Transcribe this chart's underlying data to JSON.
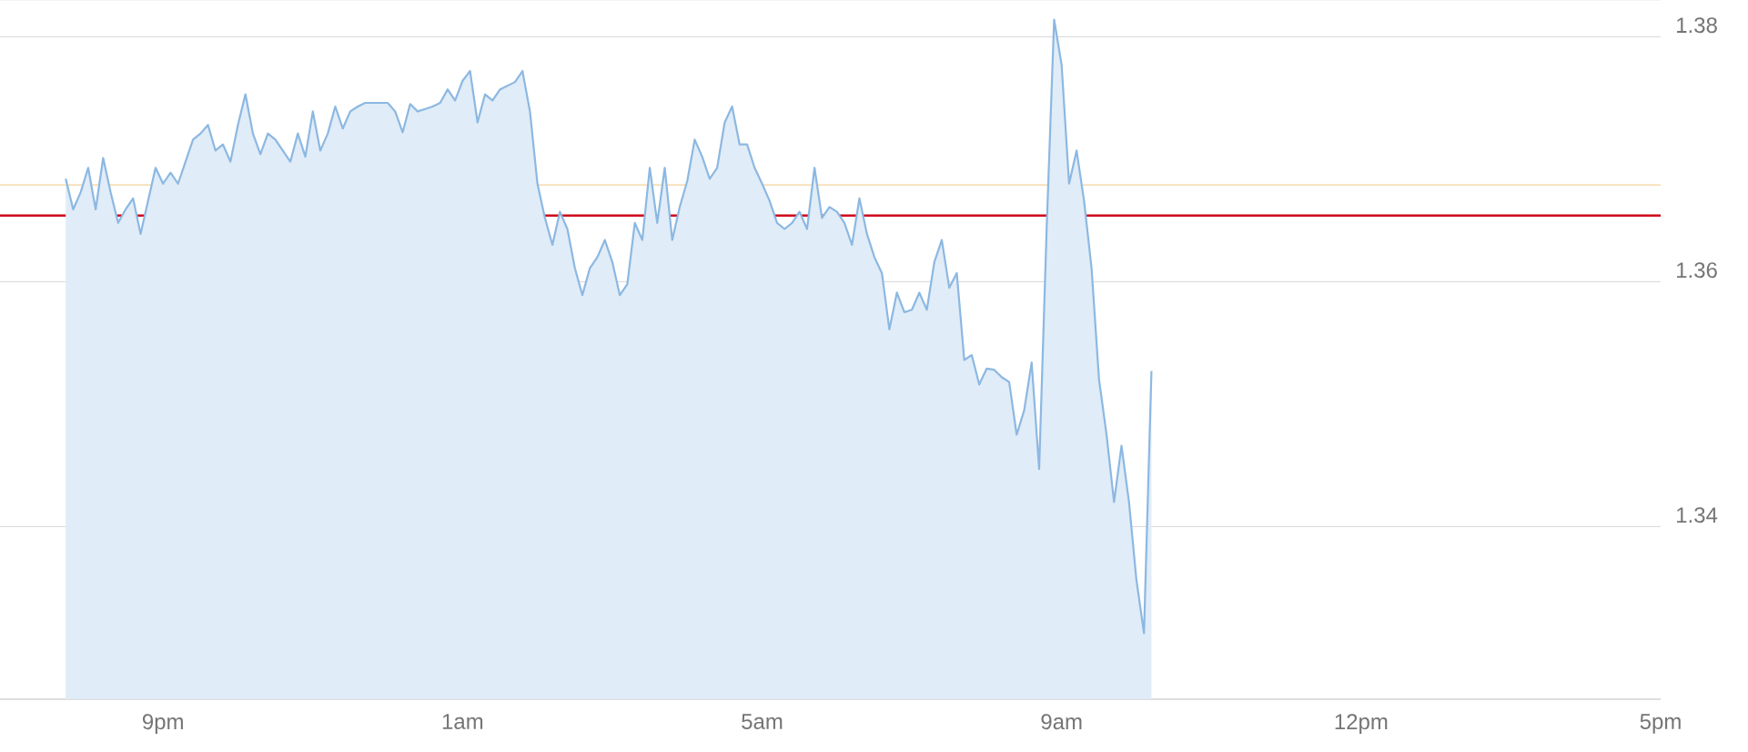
{
  "chart_data": {
    "type": "area",
    "categories": [
      null,
      null,
      null,
      null,
      null,
      null,
      null,
      null,
      null,
      null,
      null,
      null,
      null,
      "9pm",
      null,
      null,
      null,
      null,
      null,
      null,
      null,
      null,
      null,
      null,
      null,
      null,
      null,
      null,
      null,
      null,
      null,
      null,
      null,
      null,
      null,
      null,
      null,
      null,
      null,
      null,
      null,
      null,
      null,
      null,
      null,
      null,
      null,
      null,
      null,
      null,
      null,
      null,
      null,
      "1am",
      null,
      null,
      null,
      null,
      null,
      null,
      null,
      null,
      null,
      null,
      null,
      null,
      null,
      null,
      null,
      null,
      null,
      null,
      null,
      null,
      null,
      null,
      null,
      null,
      null,
      null,
      null,
      null,
      null,
      null,
      null,
      null,
      null,
      null,
      null,
      null,
      null,
      null,
      null,
      "5am",
      null,
      null,
      null,
      null,
      null,
      null,
      null,
      null,
      null,
      null,
      null,
      null,
      null,
      null,
      null,
      null,
      null,
      null,
      null,
      null,
      null,
      null,
      null,
      null,
      null,
      null,
      null,
      null,
      null,
      null,
      null,
      null,
      null,
      null,
      null,
      null,
      null,
      null,
      null,
      "9am",
      null,
      null,
      null,
      null,
      null,
      null,
      null,
      null,
      null,
      null,
      null,
      null,
      null,
      null,
      null,
      null,
      null,
      null,
      null,
      null,
      null,
      null,
      null,
      null,
      null,
      null,
      null,
      null,
      null,
      null,
      null,
      null,
      null,
      null,
      null,
      null,
      null,
      null,
      null,
      "12pm",
      null,
      null,
      null,
      null,
      null,
      null,
      null,
      null,
      null,
      null,
      null,
      null,
      null,
      null,
      null,
      null,
      null,
      null,
      null,
      null,
      null,
      null,
      null,
      null,
      null,
      null,
      null,
      null,
      null,
      null,
      null,
      null,
      null,
      null,
      null,
      null,
      null,
      null,
      null,
      "5pm"
    ],
    "series": [
      {
        "color": "#8cb8e2",
        "values": [
          1.3684,
          1.3659,
          1.3673,
          1.3693,
          1.3659,
          1.3701,
          1.3673,
          1.3648,
          1.3659,
          1.3668,
          1.3639,
          1.3666,
          1.3693,
          1.368,
          1.3689,
          1.368,
          1.3698,
          1.3716,
          1.3721,
          1.3728,
          1.3707,
          1.3712,
          1.3698,
          1.3728,
          1.3753,
          1.3721,
          1.3704,
          1.3721,
          1.3716,
          1.3707,
          1.3698,
          1.3721,
          1.3702,
          1.3739,
          1.3707,
          1.3721,
          1.3743,
          1.3725,
          1.3739,
          1.3743,
          1.3746,
          1.3746,
          1.3746,
          1.3746,
          1.3739,
          1.3722,
          1.3745,
          1.3739,
          1.3741,
          1.3743,
          1.3746,
          1.3757,
          1.3748,
          1.3764,
          1.3772,
          1.373,
          1.3753,
          1.3748,
          1.3757,
          1.376,
          1.3763,
          1.3772,
          1.3739,
          1.368,
          1.3652,
          1.363,
          1.3657,
          1.3643,
          1.3611,
          1.3589,
          1.3611,
          1.362,
          1.3634,
          1.3616,
          1.3589,
          1.3598,
          1.3648,
          1.3634,
          1.3693,
          1.3648,
          1.3693,
          1.3634,
          1.3661,
          1.3682,
          1.3716,
          1.3702,
          1.3684,
          1.3693,
          1.373,
          1.3743,
          1.3712,
          1.3712,
          1.3693,
          1.368,
          1.3666,
          1.3648,
          1.3643,
          1.3648,
          1.3657,
          1.3643,
          1.3693,
          1.3652,
          1.3661,
          1.3657,
          1.3648,
          1.363,
          1.3668,
          1.3639,
          1.362,
          1.3607,
          1.3561,
          1.3591,
          1.3575,
          1.3577,
          1.3591,
          1.3577,
          1.3616,
          1.3634,
          1.3595,
          1.3607,
          1.3536,
          1.354,
          1.3516,
          1.3529,
          1.3528,
          1.3522,
          1.3518,
          1.3475,
          1.3495,
          1.3534,
          1.3447,
          1.3643,
          1.3814,
          1.3777,
          1.368,
          1.3707,
          1.3666,
          1.3611,
          1.352,
          1.3475,
          1.342,
          1.3466,
          1.342,
          1.3356,
          1.3313,
          1.3527,
          null,
          null,
          null,
          null,
          null,
          null,
          null,
          null,
          null,
          null,
          null,
          null,
          null,
          null,
          null,
          null,
          null,
          null,
          null,
          null,
          null,
          null,
          null,
          null,
          null,
          null,
          null,
          null,
          null,
          null,
          null,
          null,
          null,
          null,
          null,
          null,
          null,
          null,
          null,
          null,
          null,
          null,
          null,
          null,
          null,
          null,
          null,
          null,
          null,
          null,
          null,
          null,
          null,
          null,
          null,
          null,
          null,
          null,
          null,
          null,
          null,
          null,
          null,
          null,
          null,
          null,
          null,
          null
        ]
      }
    ],
    "ylim": [
      1.3259,
      1.383
    ],
    "yticks": [
      1.34,
      1.36,
      1.38
    ],
    "grid": "y",
    "ref_lines": [
      {
        "axis": "y",
        "value": 1.3654,
        "color": "#d0021b"
      },
      {
        "axis": "y",
        "value": 1.3679,
        "color": "#f3d29b"
      }
    ]
  }
}
